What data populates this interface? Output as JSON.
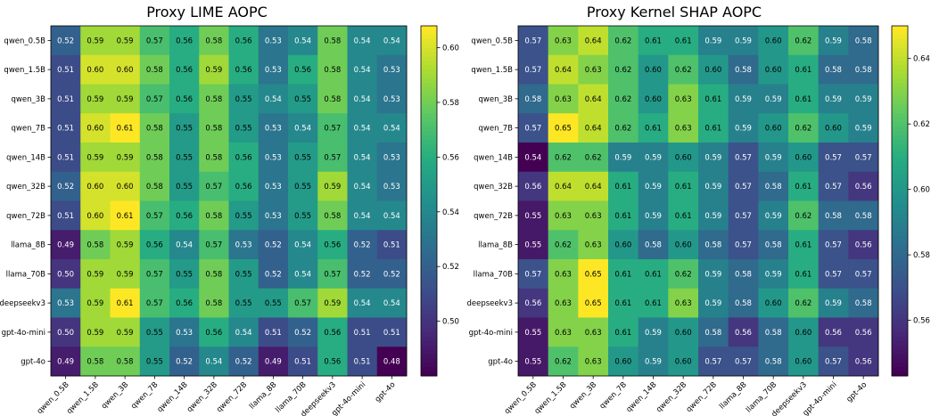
{
  "chart_data": [
    {
      "type": "heatmap",
      "title": "Proxy LIME AOPC",
      "rows": [
        "qwen_0.5B",
        "qwen_1.5B",
        "qwen_3B",
        "qwen_7B",
        "qwen_14B",
        "qwen_32B",
        "qwen_72B",
        "llama_8B",
        "llama_70B",
        "deepseekv3",
        "gpt-4o-mini",
        "gpt-4o"
      ],
      "columns": [
        "qwen_0.5B",
        "qwen_1.5B",
        "qwen_3B",
        "qwen_7B",
        "qwen_14B",
        "qwen_32B",
        "qwen_72B",
        "llama_8B",
        "llama_70B",
        "deepseekv3",
        "gpt-4o-mini",
        "gpt-4o"
      ],
      "values": [
        [
          0.52,
          0.59,
          0.59,
          0.57,
          0.56,
          0.58,
          0.56,
          0.53,
          0.54,
          0.58,
          0.54,
          0.54
        ],
        [
          0.51,
          0.6,
          0.6,
          0.58,
          0.56,
          0.59,
          0.56,
          0.53,
          0.56,
          0.58,
          0.54,
          0.53
        ],
        [
          0.51,
          0.59,
          0.59,
          0.57,
          0.56,
          0.58,
          0.55,
          0.54,
          0.55,
          0.58,
          0.54,
          0.53
        ],
        [
          0.51,
          0.6,
          0.61,
          0.58,
          0.55,
          0.58,
          0.55,
          0.53,
          0.54,
          0.57,
          0.54,
          0.54
        ],
        [
          0.51,
          0.59,
          0.59,
          0.58,
          0.55,
          0.58,
          0.56,
          0.53,
          0.55,
          0.57,
          0.54,
          0.53
        ],
        [
          0.52,
          0.6,
          0.6,
          0.58,
          0.55,
          0.57,
          0.56,
          0.53,
          0.55,
          0.59,
          0.54,
          0.53
        ],
        [
          0.51,
          0.6,
          0.61,
          0.57,
          0.56,
          0.58,
          0.55,
          0.53,
          0.55,
          0.58,
          0.54,
          0.54
        ],
        [
          0.49,
          0.58,
          0.59,
          0.56,
          0.54,
          0.57,
          0.53,
          0.52,
          0.54,
          0.56,
          0.52,
          0.51
        ],
        [
          0.5,
          0.59,
          0.59,
          0.57,
          0.55,
          0.58,
          0.55,
          0.52,
          0.54,
          0.57,
          0.52,
          0.52
        ],
        [
          0.53,
          0.59,
          0.61,
          0.57,
          0.56,
          0.58,
          0.55,
          0.55,
          0.57,
          0.59,
          0.54,
          0.54
        ],
        [
          0.5,
          0.59,
          0.59,
          0.55,
          0.53,
          0.56,
          0.54,
          0.51,
          0.52,
          0.56,
          0.51,
          0.51
        ],
        [
          0.49,
          0.58,
          0.58,
          0.55,
          0.52,
          0.54,
          0.52,
          0.49,
          0.51,
          0.56,
          0.51,
          0.48
        ]
      ],
      "colormap": "viridis",
      "vmin": 0.48,
      "vmax": 0.608,
      "colorbar_ticks": [
        "0.50",
        "0.52",
        "0.54",
        "0.56",
        "0.58",
        "0.60"
      ]
    },
    {
      "type": "heatmap",
      "title": "Proxy Kernel SHAP AOPC",
      "rows": [
        "qwen_0.5B",
        "qwen_1.5B",
        "qwen_3B",
        "qwen_7B",
        "qwen_14B",
        "qwen_32B",
        "qwen_72B",
        "llama_8B",
        "llama_70B",
        "deepseekv3",
        "gpt-4o-mini",
        "gpt-4o"
      ],
      "columns": [
        "qwen_0.5B",
        "qwen_1.5B",
        "qwen_3B",
        "qwen_7B",
        "qwen_14B",
        "qwen_32B",
        "qwen_72B",
        "llama_8B",
        "llama_70B",
        "deepseekv3",
        "gpt-4o-mini",
        "gpt-4o"
      ],
      "values": [
        [
          0.57,
          0.63,
          0.64,
          0.62,
          0.61,
          0.61,
          0.59,
          0.59,
          0.6,
          0.62,
          0.59,
          0.58
        ],
        [
          0.57,
          0.64,
          0.63,
          0.62,
          0.6,
          0.62,
          0.6,
          0.58,
          0.6,
          0.61,
          0.58,
          0.58
        ],
        [
          0.58,
          0.63,
          0.64,
          0.62,
          0.6,
          0.63,
          0.61,
          0.59,
          0.59,
          0.61,
          0.59,
          0.59
        ],
        [
          0.57,
          0.65,
          0.64,
          0.62,
          0.61,
          0.63,
          0.61,
          0.59,
          0.6,
          0.62,
          0.6,
          0.59
        ],
        [
          0.54,
          0.62,
          0.62,
          0.59,
          0.59,
          0.6,
          0.59,
          0.57,
          0.59,
          0.6,
          0.57,
          0.57
        ],
        [
          0.56,
          0.64,
          0.64,
          0.61,
          0.59,
          0.61,
          0.59,
          0.57,
          0.58,
          0.61,
          0.57,
          0.56
        ],
        [
          0.55,
          0.63,
          0.63,
          0.61,
          0.59,
          0.61,
          0.59,
          0.57,
          0.59,
          0.62,
          0.58,
          0.58
        ],
        [
          0.55,
          0.62,
          0.63,
          0.6,
          0.58,
          0.6,
          0.58,
          0.57,
          0.58,
          0.61,
          0.57,
          0.56
        ],
        [
          0.57,
          0.63,
          0.65,
          0.61,
          0.61,
          0.62,
          0.59,
          0.58,
          0.59,
          0.61,
          0.57,
          0.57
        ],
        [
          0.56,
          0.63,
          0.65,
          0.61,
          0.61,
          0.63,
          0.59,
          0.58,
          0.6,
          0.62,
          0.59,
          0.58
        ],
        [
          0.55,
          0.63,
          0.63,
          0.61,
          0.59,
          0.6,
          0.58,
          0.56,
          0.58,
          0.6,
          0.56,
          0.56
        ],
        [
          0.55,
          0.62,
          0.63,
          0.6,
          0.59,
          0.6,
          0.57,
          0.57,
          0.58,
          0.6,
          0.57,
          0.56
        ]
      ],
      "colormap": "viridis",
      "vmin": 0.543,
      "vmax": 0.65,
      "colorbar_ticks": [
        "0.56",
        "0.58",
        "0.60",
        "0.62",
        "0.64"
      ]
    }
  ]
}
